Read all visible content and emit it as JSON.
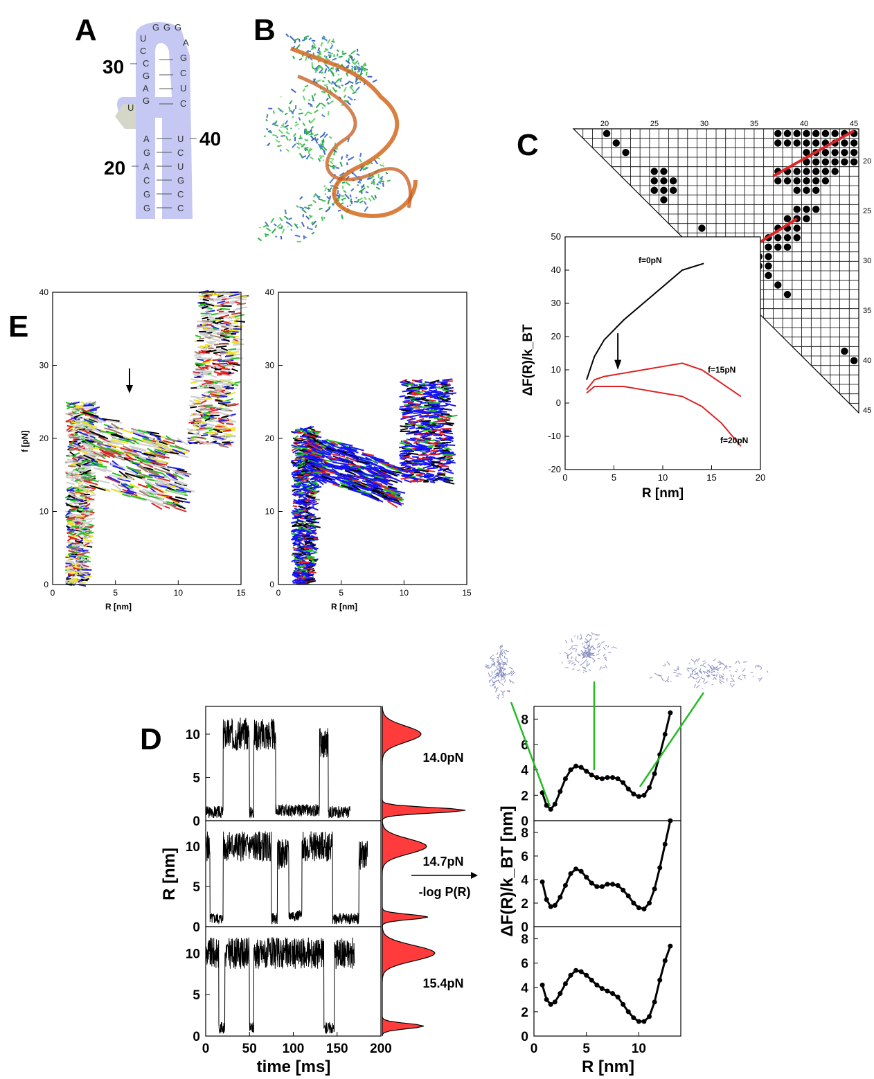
{
  "panels": {
    "a": {
      "letter": "A",
      "position_labels": [
        "30",
        "40",
        "20"
      ],
      "left_strand_top": [
        "U",
        "C",
        "C",
        "G",
        "A",
        "G"
      ],
      "loop": [
        "G",
        "G",
        "G"
      ],
      "right_strand_top": [
        "A",
        "G",
        "C",
        "U",
        "C"
      ],
      "bulge": "U",
      "left_strand_bottom": [
        "A",
        "G",
        "A",
        "C",
        "G",
        "G"
      ],
      "right_strand_bottom": [
        "U",
        "C",
        "U",
        "G",
        "C",
        "C"
      ],
      "colors": {
        "backbone": "#c4c8f3",
        "bulge": "#d4d6c8"
      }
    },
    "b": {
      "letter": "B"
    },
    "c": {
      "letter": "C",
      "top_ticks": [
        "20",
        "25",
        "30",
        "35",
        "40",
        "45"
      ],
      "right_ticks": [
        "20",
        "25",
        "30",
        "35",
        "40",
        "45"
      ]
    },
    "d": {
      "letter": "D",
      "forces": [
        "14.0pN",
        "14.7pN",
        "15.4pN"
      ],
      "arrow_label": "-log P(R)",
      "left_ylabel": "R [nm]",
      "left_xlabel": "time [ms]",
      "left_xticks": [
        "0",
        "50",
        "100",
        "150",
        "200"
      ],
      "left_yticks": [
        "0",
        "5",
        "10"
      ],
      "right_ylabel": "ΔF(R)/k_BT [nm]",
      "right_xlabel": "R [nm]",
      "right_xticks": [
        "0",
        "5",
        "10"
      ],
      "right_yticks": [
        "0",
        "2",
        "4",
        "6",
        "8"
      ]
    },
    "e": {
      "letter": "E",
      "ylabel": "f [pN]",
      "xlabel": "R [nm]",
      "xticks": [
        "0",
        "5",
        "10",
        "15"
      ],
      "yticks": [
        "0",
        "10",
        "20",
        "30",
        "40"
      ]
    }
  },
  "chart_data": [
    {
      "type": "line",
      "panel": "C-inset",
      "xlabel": "R [nm]",
      "ylabel": "ΔF(R)/k_BT",
      "xlim": [
        0,
        20
      ],
      "ylim": [
        -20,
        50
      ],
      "xticks": [
        "0",
        "5",
        "10",
        "15",
        "20"
      ],
      "yticks": [
        "-20",
        "-10",
        "0",
        "10",
        "20",
        "30",
        "40",
        "50"
      ],
      "series": [
        {
          "name": "f=0pN",
          "color": "#000000",
          "x": [
            2.2,
            3,
            4,
            5,
            6,
            8,
            10,
            12,
            14.2
          ],
          "y": [
            7,
            14,
            19,
            22,
            25,
            30,
            35,
            40,
            42
          ]
        },
        {
          "name": "f=15pN",
          "color": "#e02020",
          "x": [
            2.2,
            3,
            4,
            6,
            8,
            10,
            12,
            14,
            16,
            18
          ],
          "y": [
            4,
            7,
            8,
            9,
            10,
            11,
            12,
            10,
            6,
            2
          ]
        },
        {
          "name": "f=20pN",
          "color": "#e02020",
          "x": [
            2.2,
            3,
            4,
            6,
            8,
            10,
            12,
            14,
            16,
            18
          ],
          "y": [
            3,
            5,
            5,
            5,
            4,
            3,
            2,
            -1,
            -6,
            -13
          ]
        }
      ]
    },
    {
      "type": "line",
      "panel": "D-right",
      "xlabel": "R [nm]",
      "series": [
        {
          "name": "14.0pN",
          "x": [
            0.8,
            1.2,
            1.6,
            2.0,
            2.5,
            3.0,
            3.5,
            4.0,
            4.5,
            5.0,
            5.5,
            6.0,
            6.5,
            7.0,
            7.5,
            8.0,
            8.5,
            9.0,
            9.5,
            10.0,
            10.5,
            11.0,
            11.5,
            12.0,
            12.5,
            13.0
          ],
          "y": [
            2.2,
            1.2,
            0.9,
            1.3,
            2.3,
            3.3,
            4.0,
            4.3,
            4.2,
            3.9,
            3.6,
            3.4,
            3.3,
            3.4,
            3.4,
            3.3,
            3.0,
            2.5,
            2.1,
            1.9,
            2.0,
            2.6,
            3.7,
            5.2,
            6.8,
            8.5
          ]
        },
        {
          "name": "14.7pN",
          "x": [
            0.8,
            1.2,
            1.6,
            2.0,
            2.5,
            3.0,
            3.5,
            4.0,
            4.5,
            5.0,
            5.5,
            6.0,
            6.5,
            7.0,
            7.5,
            8.0,
            8.5,
            9.0,
            9.5,
            10.0,
            10.5,
            11.0,
            11.5,
            12.0,
            12.5,
            13.0
          ],
          "y": [
            3.8,
            2.3,
            1.7,
            1.8,
            2.5,
            3.5,
            4.5,
            4.9,
            4.7,
            4.2,
            3.7,
            3.4,
            3.4,
            3.6,
            3.6,
            3.5,
            3.1,
            2.6,
            2.0,
            1.6,
            1.5,
            2.0,
            3.2,
            5.0,
            7.0,
            9.0
          ]
        },
        {
          "name": "15.4pN",
          "x": [
            0.8,
            1.2,
            1.6,
            2.0,
            2.5,
            3.0,
            3.5,
            4.0,
            4.5,
            5.0,
            5.5,
            6.0,
            6.5,
            7.0,
            7.5,
            8.0,
            8.5,
            9.0,
            9.5,
            10.0,
            10.5,
            11.0,
            11.5,
            12.0,
            12.5,
            13.0
          ],
          "y": [
            4.2,
            3.0,
            2.6,
            2.8,
            3.5,
            4.3,
            5.0,
            5.4,
            5.3,
            5.0,
            4.6,
            4.2,
            3.9,
            3.7,
            3.5,
            3.2,
            2.6,
            2.0,
            1.5,
            1.2,
            1.2,
            1.6,
            2.8,
            4.6,
            6.2,
            7.4
          ]
        }
      ]
    }
  ]
}
